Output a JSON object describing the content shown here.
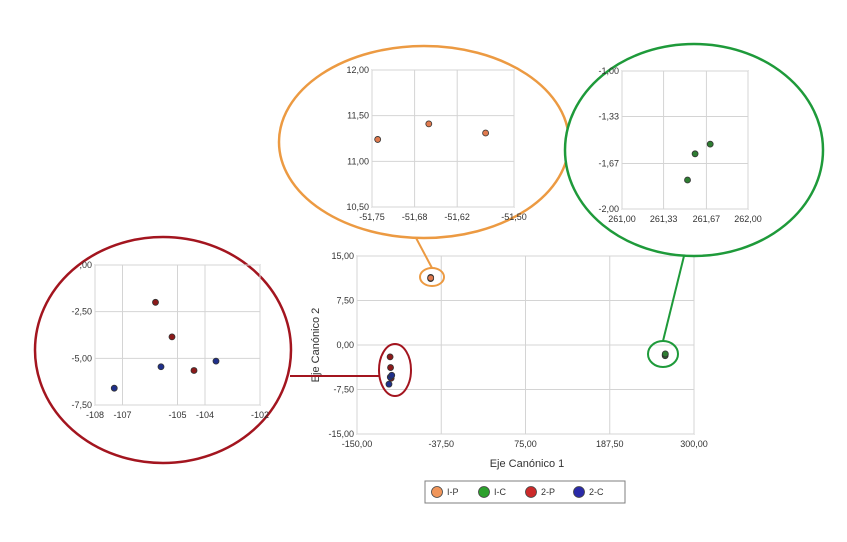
{
  "colors": {
    "I-P": "#f0955a",
    "I-C": "#2ca02c",
    "2-P": "#cc2a2a",
    "2-C": "#2a2aa8",
    "orange_marker": "#e07a4e",
    "green_marker": "#2e7d32",
    "red_marker": "#8b1a1a",
    "blue_marker": "#1f2f8a",
    "orange_outline": "#ec9a42",
    "green_outline": "#1e9a3a",
    "red_outline": "#a3151f"
  },
  "chart_data": [
    {
      "id": "main",
      "type": "scatter",
      "xlabel": "Eje Canónico 1",
      "ylabel": "Eje Canónico 2",
      "xlim": [
        -150,
        300
      ],
      "ylim": [
        -15,
        15
      ],
      "xticks": [
        "-150,00",
        "-37,50",
        "75,00",
        "187,50",
        "300,00"
      ],
      "yticks": [
        "15,00",
        "7,50",
        "0,00",
        "-7,50",
        "-15,00"
      ],
      "grid": true,
      "legend_position": "bottom",
      "series": [
        {
          "name": "I-P",
          "color": "#e07a4e",
          "points": [
            [
              -51.7,
              11.2
            ],
            [
              -51.66,
              11.4
            ],
            [
              -51.57,
              11.3
            ]
          ]
        },
        {
          "name": "I-C",
          "color": "#2e7d32",
          "points": [
            [
              261.5,
              -1.8
            ],
            [
              261.58,
              -1.57
            ],
            [
              261.7,
              -1.5
            ]
          ]
        },
        {
          "name": "2-P",
          "color": "#8b1a1a",
          "points": [
            [
              -105.8,
              -2.0
            ],
            [
              -105.2,
              -3.8
            ],
            [
              -104.4,
              -5.6
            ]
          ]
        },
        {
          "name": "2-C",
          "color": "#1f2f8a",
          "points": [
            [
              -107.3,
              -6.6
            ],
            [
              -105.6,
              -5.4
            ],
            [
              -103.6,
              -5.1
            ]
          ]
        }
      ]
    },
    {
      "id": "zoom-orange",
      "type": "scatter",
      "xlim": [
        -51.75,
        -51.5
      ],
      "ylim": [
        10.5,
        12.0
      ],
      "xticks": [
        "-51,75",
        "-51,68",
        "-51,62",
        "-51,50"
      ],
      "yticks": [
        "12,00",
        "11,50",
        "11,00",
        "10,50"
      ],
      "grid": true,
      "series": [
        {
          "name": "I-P",
          "color": "#e07a4e",
          "points": [
            [
              -51.74,
              11.24
            ],
            [
              -51.65,
              11.41
            ],
            [
              -51.55,
              11.31
            ]
          ]
        }
      ]
    },
    {
      "id": "zoom-green",
      "type": "scatter",
      "xlim": [
        261.0,
        262.0
      ],
      "ylim": [
        -2.0,
        -1.0
      ],
      "xticks": [
        "261,00",
        "261,33",
        "261,67",
        "262,00"
      ],
      "yticks": [
        "-1,00",
        "-1,33",
        "-1,67",
        "-2,00"
      ],
      "grid": true,
      "series": [
        {
          "name": "I-C",
          "color": "#2e7d32",
          "points": [
            [
              261.52,
              -1.79
            ],
            [
              261.58,
              -1.6
            ],
            [
              261.7,
              -1.53
            ]
          ]
        }
      ]
    },
    {
      "id": "zoom-red",
      "type": "scatter",
      "xlim": [
        -108,
        -102
      ],
      "ylim": [
        -7.5,
        0.0
      ],
      "xticks": [
        "-108",
        "-107",
        "-105",
        "-104",
        "-102"
      ],
      "yticks": [
        ",00",
        "-2,50",
        "-5,00",
        "-7,50"
      ],
      "grid": true,
      "series": [
        {
          "name": "2-P",
          "color": "#8b1a1a",
          "points": [
            [
              -105.8,
              -2.0
            ],
            [
              -105.2,
              -3.85
            ],
            [
              -104.4,
              -5.65
            ]
          ]
        },
        {
          "name": "2-C",
          "color": "#1f2f8a",
          "points": [
            [
              -107.3,
              -6.6
            ],
            [
              -105.6,
              -5.45
            ],
            [
              -103.6,
              -5.15
            ]
          ]
        }
      ]
    }
  ],
  "legend": {
    "items": [
      {
        "label": "I-P",
        "color": "#f0955a"
      },
      {
        "label": "I-C",
        "color": "#2ca02c"
      },
      {
        "label": "2-P",
        "color": "#cc2a2a"
      },
      {
        "label": "2-C",
        "color": "#2a2aa8"
      }
    ]
  }
}
